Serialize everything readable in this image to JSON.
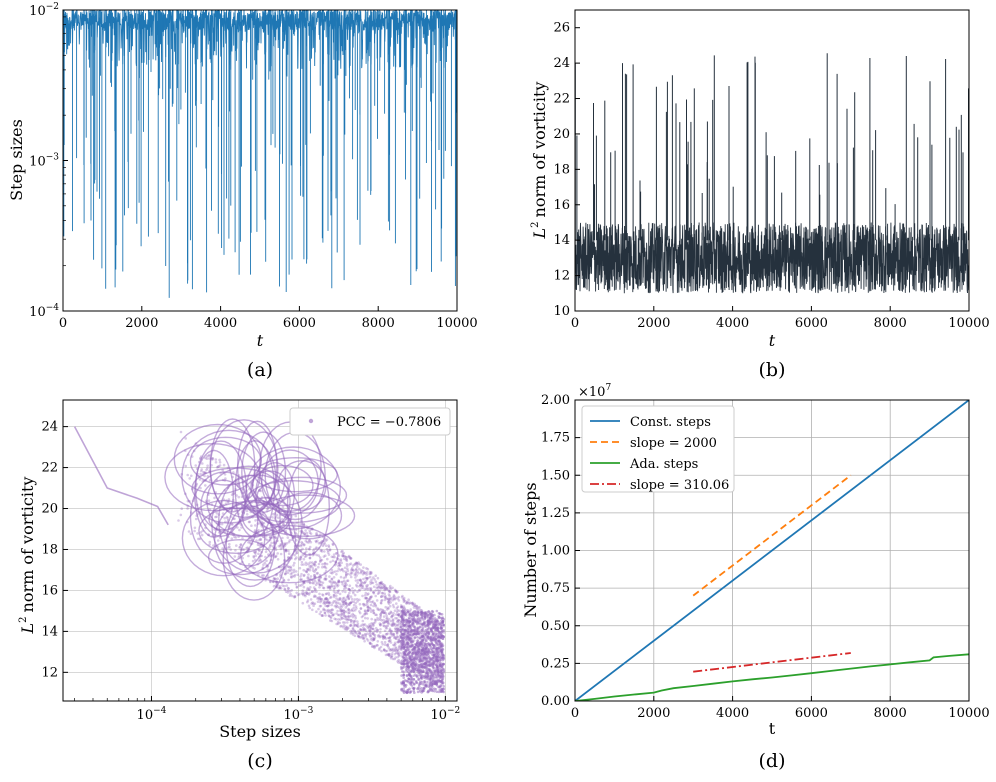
{
  "colors": {
    "step_sizes": "#1f77b4",
    "vorticity": "#25313d",
    "scatter": "#9467bd",
    "const_steps": "#1f77b4",
    "slope_2000": "#ff7f0e",
    "ada_steps": "#2ca02c",
    "slope_310": "#d62728",
    "grid": "#b0b0b0"
  },
  "chart_data": [
    {
      "id": "a",
      "type": "line",
      "caption": "(a)",
      "xlabel": "t",
      "ylabel": "Step sizes",
      "xlim": [
        0,
        10000
      ],
      "ylim": [
        0.0001,
        0.01
      ],
      "yscale": "log",
      "xticks": [
        0,
        2000,
        4000,
        6000,
        8000,
        10000
      ],
      "xtick_labels": [
        "0",
        "2000",
        "4000",
        "6000",
        "8000",
        "10000"
      ],
      "ytick_labels": [
        {
          "base": "10",
          "exp": "−2",
          "value": 0.01
        },
        {
          "base": "10",
          "exp": "−3",
          "value": 0.001
        },
        {
          "base": "10",
          "exp": "−4",
          "value": 0.0001
        }
      ],
      "grid": false,
      "summary": {
        "cap": 0.01,
        "typical_low": 0.004,
        "dip_min": 0.00012,
        "dip_count": 170
      }
    },
    {
      "id": "b",
      "type": "line",
      "caption": "(b)",
      "xlabel": "t",
      "ylabel": "norm of vorticity",
      "ylabel_symbol": "L",
      "ylabel_sup": "2",
      "xlim": [
        0,
        10000
      ],
      "ylim": [
        10,
        27
      ],
      "xticks": [
        0,
        2000,
        4000,
        6000,
        8000,
        10000
      ],
      "xtick_labels": [
        "0",
        "2000",
        "4000",
        "6000",
        "8000",
        "10000"
      ],
      "yticks": [
        10,
        12,
        14,
        16,
        18,
        20,
        22,
        24,
        26
      ],
      "ytick_labels": [
        "10",
        "12",
        "14",
        "16",
        "18",
        "20",
        "22",
        "24",
        "26"
      ],
      "grid": false,
      "summary": {
        "band_low": 11.0,
        "band_high": 15.0,
        "peaks_max": 24.6
      }
    },
    {
      "id": "c",
      "type": "scatter",
      "caption": "(c)",
      "xlabel": "Step sizes",
      "ylabel": "norm of vorticity",
      "ylabel_symbol": "L",
      "ylabel_sup": "2",
      "xscale": "log",
      "xlim": [
        2.5e-05,
        0.012
      ],
      "ylim": [
        10.6,
        25.3
      ],
      "xtick_labels": [
        {
          "base": "10",
          "exp": "−4",
          "value": 0.0001
        },
        {
          "base": "10",
          "exp": "−3",
          "value": 0.001
        },
        {
          "base": "10",
          "exp": "−2",
          "value": 0.01
        }
      ],
      "yticks": [
        12,
        14,
        16,
        18,
        20,
        22,
        24
      ],
      "ytick_labels": [
        "12",
        "14",
        "16",
        "18",
        "20",
        "22",
        "24"
      ],
      "grid": true,
      "legend": {
        "label": "PCC = −0.7806",
        "position": "upper right"
      },
      "summary": {
        "pcc": -0.7806,
        "trail": [
          [
            3e-05,
            24.0
          ],
          [
            5e-05,
            21.0
          ],
          [
            8e-05,
            20.5
          ],
          [
            0.00011,
            20.1
          ],
          [
            0.00013,
            19.2
          ]
        ]
      }
    },
    {
      "id": "d",
      "type": "line",
      "caption": "(d)",
      "xlabel": "t",
      "ylabel": "Number of steps",
      "xlim": [
        0,
        10000
      ],
      "ylim": [
        0,
        20000000
      ],
      "y_offset_label": {
        "base": "×10",
        "exp": "7"
      },
      "xticks": [
        0,
        2000,
        4000,
        6000,
        8000,
        10000
      ],
      "xtick_labels": [
        "0",
        "2000",
        "4000",
        "6000",
        "8000",
        "10000"
      ],
      "yticks": [
        0,
        2500000,
        5000000,
        7500000,
        10000000,
        12500000,
        15000000,
        17500000,
        20000000
      ],
      "ytick_labels": [
        "0.00",
        "0.25",
        "0.50",
        "0.75",
        "1.00",
        "1.25",
        "1.50",
        "1.75",
        "2.00"
      ],
      "grid": true,
      "legend_position": "upper left",
      "series": [
        {
          "name": "Const. steps",
          "style": "solid",
          "x": [
            0,
            10000
          ],
          "y": [
            0,
            20000000
          ]
        },
        {
          "name": "slope = 2000",
          "style": "dashed",
          "x": [
            3000,
            7000
          ],
          "y": [
            7000000,
            15000000
          ]
        },
        {
          "name": "Ada. steps",
          "style": "solid",
          "x": [
            0,
            500,
            1000,
            1500,
            2000,
            2200,
            2500,
            3000,
            3500,
            4000,
            4500,
            5000,
            5500,
            6000,
            6500,
            7000,
            7500,
            8000,
            8500,
            9000,
            9100,
            9500,
            10000
          ],
          "y": [
            0,
            140000,
            300000,
            430000,
            560000,
            700000,
            850000,
            1000000,
            1150000,
            1300000,
            1440000,
            1560000,
            1700000,
            1850000,
            2000000,
            2150000,
            2300000,
            2430000,
            2570000,
            2700000,
            2900000,
            3000000,
            3100000
          ]
        },
        {
          "name": "slope = 310.06",
          "style": "dashdot",
          "x": [
            3000,
            7000
          ],
          "y": [
            1950000,
            3190000
          ]
        }
      ]
    }
  ]
}
